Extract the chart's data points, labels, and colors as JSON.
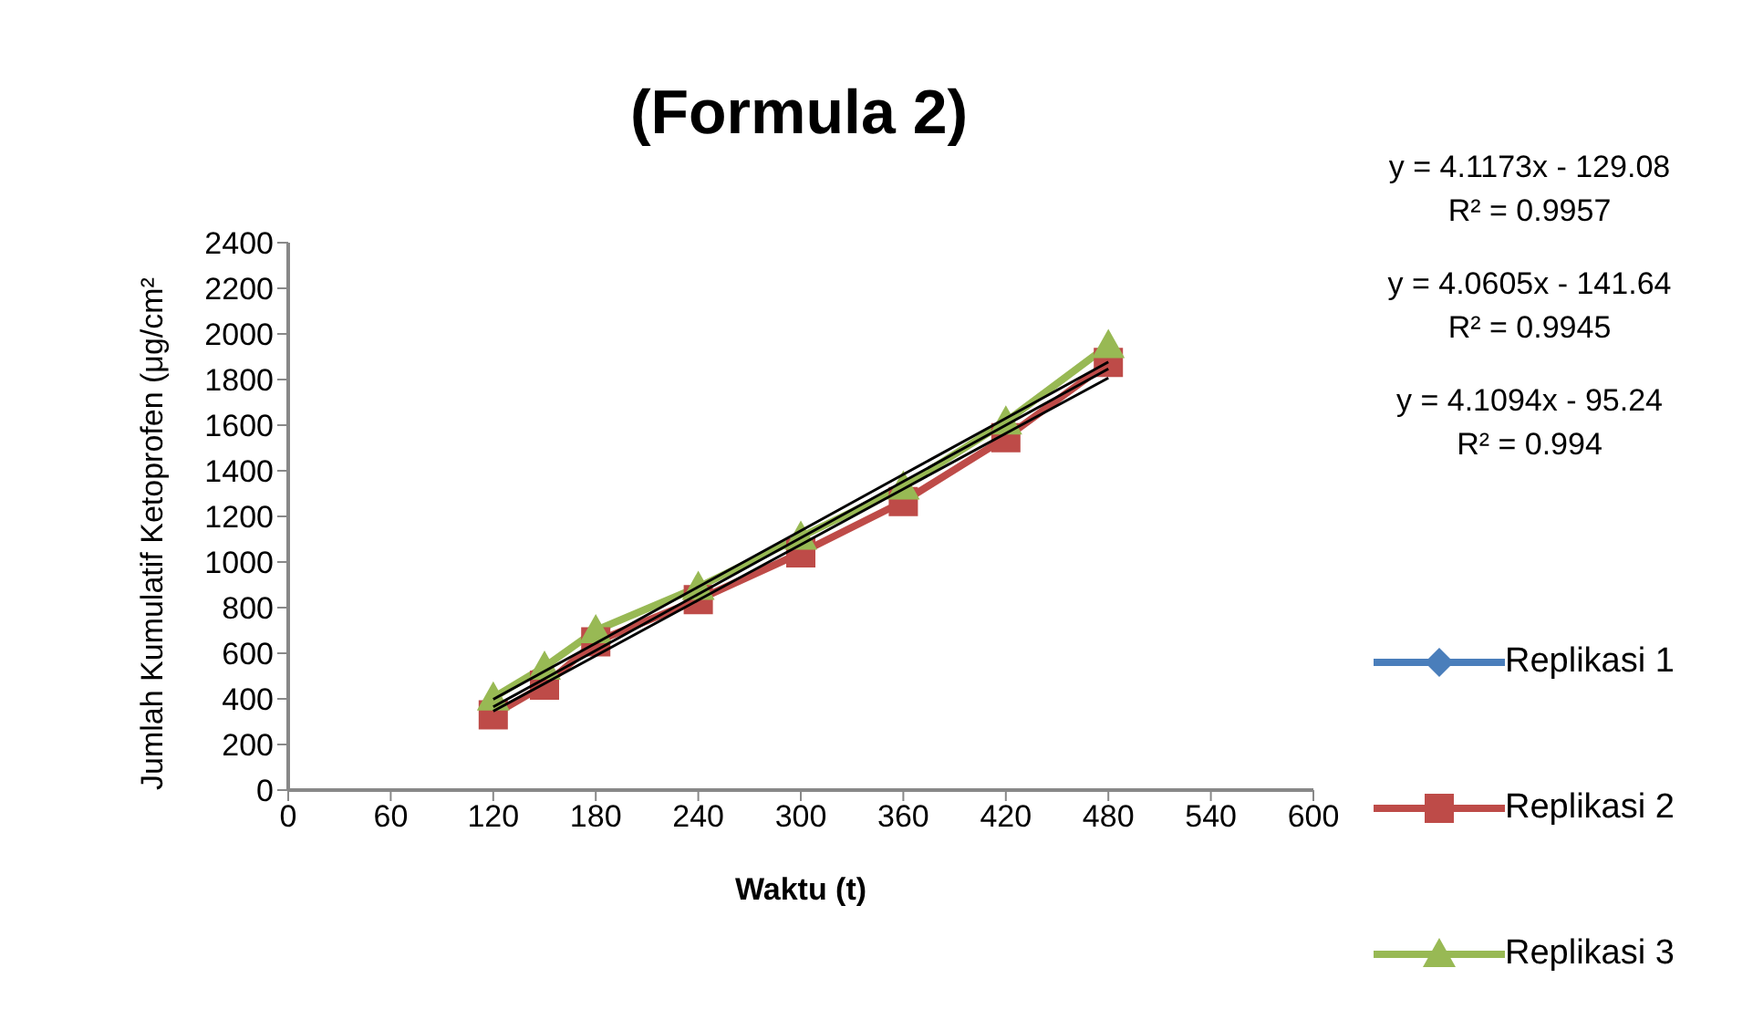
{
  "chart_data": {
    "type": "line",
    "title": "(Formula 2)",
    "xlabel": "Waktu (t)",
    "ylabel": "Jumlah Kumulatif Ketoprofen (μg/cm²",
    "x": [
      120,
      150,
      180,
      240,
      300,
      360,
      420,
      480
    ],
    "series": [
      {
        "name": "Replikasi 1",
        "color": "#4a7ebb",
        "marker": "diamond",
        "values": [
          null,
          null,
          null,
          null,
          null,
          null,
          null,
          null
        ]
      },
      {
        "name": "Replikasi 2",
        "color": "#be4b48",
        "marker": "square",
        "values": [
          330,
          460,
          650,
          835,
          1040,
          1265,
          1545,
          1875
        ]
      },
      {
        "name": "Replikasi 3",
        "color": "#98b954",
        "marker": "triangle",
        "values": [
          405,
          540,
          700,
          890,
          1110,
          1330,
          1615,
          1950
        ]
      },
      {
        "type": "line",
        "color": "#000000",
        "marker": "none",
        "values": [
          346,
          467,
          589,
          833,
          1076,
          1320,
          1564,
          1807
        ]
      },
      {
        "type": "line",
        "color": "#000000",
        "marker": "none",
        "values": [
          398,
          521,
          644,
          891,
          1137,
          1384,
          1630,
          1877
        ]
      },
      {
        "type": "line",
        "color": "#000000",
        "marker": "none",
        "values": [
          365,
          488,
          612,
          859,
          1106,
          1353,
          1600,
          1847
        ]
      }
    ],
    "annotations": [
      "y = 4.1173x - 129.08",
      "R² = 0.9957",
      "y = 4.0605x - 141.64",
      "R² = 0.9945",
      "y = 4.1094x - 95.24",
      "R² = 0.994"
    ],
    "xlim": [
      0,
      600
    ],
    "xticks": [
      0,
      60,
      120,
      180,
      240,
      300,
      360,
      420,
      480,
      540,
      600
    ],
    "ylim": [
      0,
      2400
    ],
    "yticks": [
      0,
      200,
      400,
      600,
      800,
      1000,
      1200,
      1400,
      1600,
      1800,
      2000,
      2200,
      2400
    ],
    "grid": false,
    "legend": "right",
    "line_style": "solid"
  }
}
